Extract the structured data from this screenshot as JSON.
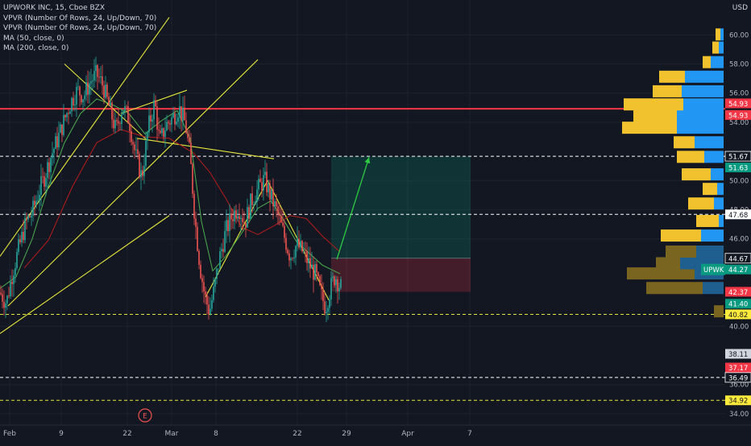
{
  "legend": {
    "title": "UPWORK INC, 15, Cboe BZX",
    "lines": [
      "VPVR (Number Of Rows, 24, Up/Down, 70)",
      "VPVR (Number Of Rows, 24, Up/Down, 70)",
      "MA (50, close, 0)",
      "MA (200, close, 0)"
    ]
  },
  "currency": "USD",
  "event_marker": "E",
  "colors": {
    "background": "#131722",
    "candle_up": "#26a69a",
    "candle_down": "#ef5350",
    "ma50": "#4caf50",
    "ma200": "#b71c1c",
    "trendline": "#e5e83a",
    "resistance": "#f23645",
    "target_arrow": "#2ecc40",
    "vol_up": "#2196f3",
    "vol_down": "#f2c12e"
  },
  "chart_data": {
    "type": "candlestick",
    "title": "UPWORK INC, 15, Cboe BZX",
    "symbol": "UPWK",
    "interval": "15",
    "ylim": [
      33.4,
      61.2
    ],
    "y_ticks": [
      34.0,
      36.0,
      40.0,
      46.0,
      48.0,
      50.0,
      54.0,
      56.0,
      58.0,
      60.0
    ],
    "x_tick_labels": [
      "Feb",
      "9",
      "22",
      "Mar",
      "8",
      "22",
      "29",
      "Apr",
      "7"
    ],
    "price_series": [
      [
        0,
        42.3
      ],
      [
        8,
        41.6
      ],
      [
        16,
        43.8
      ],
      [
        24,
        45.5
      ],
      [
        32,
        47.1
      ],
      [
        40,
        47.8
      ],
      [
        48,
        49.2
      ],
      [
        56,
        50.4
      ],
      [
        64,
        51.8
      ],
      [
        72,
        52.9
      ],
      [
        80,
        54.2
      ],
      [
        88,
        55.4
      ],
      [
        96,
        56.2
      ],
      [
        104,
        55.8
      ],
      [
        112,
        56.8
      ],
      [
        120,
        57.3
      ],
      [
        128,
        56.5
      ],
      [
        136,
        54.9
      ],
      [
        144,
        53.4
      ],
      [
        152,
        55.1
      ],
      [
        160,
        54.2
      ],
      [
        168,
        51.8
      ],
      [
        176,
        50.2
      ],
      [
        184,
        53.6
      ],
      [
        192,
        55.4
      ],
      [
        198,
        52.6
      ],
      [
        206,
        53.8
      ],
      [
        214,
        54.3
      ],
      [
        222,
        55.0
      ],
      [
        230,
        53.9
      ],
      [
        236,
        51.6
      ],
      [
        242,
        47.3
      ],
      [
        248,
        44.2
      ],
      [
        254,
        42.1
      ],
      [
        260,
        41.0
      ],
      [
        266,
        42.6
      ],
      [
        272,
        44.6
      ],
      [
        280,
        46.5
      ],
      [
        288,
        47.6
      ],
      [
        296,
        48.2
      ],
      [
        304,
        47.1
      ],
      [
        312,
        48.6
      ],
      [
        320,
        49.4
      ],
      [
        328,
        50.1
      ],
      [
        336,
        48.9
      ],
      [
        344,
        47.8
      ],
      [
        352,
        46.3
      ],
      [
        360,
        44.8
      ],
      [
        368,
        45.6
      ],
      [
        376,
        45.1
      ],
      [
        384,
        44.2
      ],
      [
        392,
        43.5
      ],
      [
        398,
        42.2
      ],
      [
        404,
        41.3
      ],
      [
        410,
        42.6
      ],
      [
        416,
        43.5
      ],
      [
        422,
        42.7
      ]
    ],
    "ma50": [
      [
        0,
        42.6
      ],
      [
        20,
        43.4
      ],
      [
        40,
        46.0
      ],
      [
        60,
        49.6
      ],
      [
        80,
        52.6
      ],
      [
        100,
        54.6
      ],
      [
        120,
        55.6
      ],
      [
        140,
        55.2
      ],
      [
        160,
        54.6
      ],
      [
        180,
        53.2
      ],
      [
        200,
        54.1
      ],
      [
        220,
        54.8
      ],
      [
        236,
        52.9
      ],
      [
        250,
        47.2
      ],
      [
        264,
        43.8
      ],
      [
        280,
        44.8
      ],
      [
        300,
        46.4
      ],
      [
        320,
        48.1
      ],
      [
        336,
        48.6
      ],
      [
        352,
        47.3
      ],
      [
        368,
        45.8
      ],
      [
        384,
        45.0
      ],
      [
        400,
        44.2
      ],
      [
        422,
        43.6
      ]
    ],
    "ma200": [
      [
        30,
        44.0
      ],
      [
        60,
        45.9
      ],
      [
        90,
        49.6
      ],
      [
        120,
        52.6
      ],
      [
        150,
        53.5
      ],
      [
        180,
        53.0
      ],
      [
        210,
        52.9
      ],
      [
        240,
        51.9
      ],
      [
        260,
        50.6
      ],
      [
        280,
        48.8
      ],
      [
        300,
        46.8
      ],
      [
        320,
        46.3
      ],
      [
        340,
        46.9
      ],
      [
        360,
        47.6
      ],
      [
        380,
        47.4
      ],
      [
        400,
        46.2
      ],
      [
        422,
        45.1
      ]
    ],
    "horizontal_levels": [
      {
        "price": 54.93,
        "style": "solid",
        "color": "#f23645"
      },
      {
        "price": 51.67,
        "style": "dashed",
        "color": "#ffffff"
      },
      {
        "price": 47.68,
        "style": "dashed",
        "color": "#ffffff"
      },
      {
        "price": 40.82,
        "style": "dashed",
        "color": "#e5e83a"
      },
      {
        "price": 36.49,
        "style": "dashed",
        "color": "#ffffff"
      },
      {
        "price": 34.92,
        "style": "dashed",
        "color": "#e5e83a"
      }
    ],
    "trend_lines": [
      {
        "from": [
          0,
          44.8
        ],
        "to": [
          210,
          61.2
        ]
      },
      {
        "from": [
          10,
          41.4
        ],
        "to": [
          320,
          58.3
        ]
      },
      {
        "from": [
          0,
          39.5
        ],
        "to": [
          210,
          47.6
        ]
      },
      {
        "from": [
          170,
          52.9
        ],
        "to": [
          340,
          51.5
        ]
      },
      {
        "from": [
          80,
          58.0
        ],
        "to": [
          182,
          52.8
        ]
      },
      {
        "from": [
          150,
          54.6
        ],
        "to": [
          232,
          56.2
        ]
      },
      {
        "from": [
          255,
          42.0
        ],
        "to": [
          332,
          50.0
        ]
      },
      {
        "from": [
          332,
          50.0
        ],
        "to": [
          408,
          41.8
        ]
      }
    ],
    "position": {
      "entry": 44.67,
      "target": 51.67,
      "stop": 42.37
    },
    "target_arrow": {
      "from": [
        418,
        44.6
      ],
      "to": [
        458,
        51.6
      ]
    },
    "volume_profile": [
      {
        "price": 41.0,
        "up": 0,
        "down": 12,
        "muted": true
      },
      {
        "price": 42.6,
        "up": 26,
        "down": 70,
        "muted": true
      },
      {
        "price": 43.6,
        "up": 36,
        "down": 84,
        "muted": true
      },
      {
        "price": 44.3,
        "up": 54,
        "down": 30,
        "muted": true
      },
      {
        "price": 45.1,
        "up": 34,
        "down": 38,
        "muted": true
      },
      {
        "price": 46.2,
        "up": 28,
        "down": 50
      },
      {
        "price": 47.2,
        "up": 6,
        "down": 28
      },
      {
        "price": 48.4,
        "up": 12,
        "down": 32
      },
      {
        "price": 49.4,
        "up": 8,
        "down": 18
      },
      {
        "price": 50.4,
        "up": 16,
        "down": 36
      },
      {
        "price": 51.6,
        "up": 24,
        "down": 34
      },
      {
        "price": 52.6,
        "up": 36,
        "down": 26
      },
      {
        "price": 53.6,
        "up": 58,
        "down": 68
      },
      {
        "price": 54.4,
        "up": 58,
        "down": 54
      },
      {
        "price": 55.2,
        "up": 50,
        "down": 74
      },
      {
        "price": 56.1,
        "up": 52,
        "down": 36
      },
      {
        "price": 57.1,
        "up": 48,
        "down": 32
      },
      {
        "price": 58.1,
        "up": 16,
        "down": 10
      },
      {
        "price": 59.1,
        "up": 6,
        "down": 8
      },
      {
        "price": 60.0,
        "up": 4,
        "down": 6
      }
    ],
    "price_labels": [
      {
        "text": "54.93",
        "price": 55.3,
        "bg": "#f23645",
        "fg": "#ffffff"
      },
      {
        "text": "54.93",
        "price": 54.5,
        "bg": "#f23645",
        "fg": "#ffffff"
      },
      {
        "text": "51.67",
        "price": 51.67,
        "bg": "#131722",
        "fg": "#ffffff",
        "border": "#ffffff"
      },
      {
        "text": "51.63",
        "price": 50.9,
        "bg": "#089981",
        "fg": "#ffffff"
      },
      {
        "text": "47.68",
        "price": 47.68,
        "bg": "#ffffff",
        "fg": "#131722"
      },
      {
        "text": "44.67",
        "price": 44.67,
        "bg": "#131722",
        "fg": "#ffffff",
        "border": "#ffffff"
      },
      {
        "text": "44.27",
        "price": 43.9,
        "bg": "#089981",
        "fg": "#ffffff"
      },
      {
        "text": "42.37",
        "price": 42.37,
        "bg": "#f23645",
        "fg": "#ffffff"
      },
      {
        "text": "41.40",
        "price": 41.55,
        "bg": "#089981",
        "fg": "#ffffff"
      },
      {
        "text": "40.82",
        "price": 40.82,
        "bg": "#ffeb3b",
        "fg": "#131722"
      },
      {
        "text": "38.11",
        "price": 38.11,
        "bg": "#d1d4dc",
        "fg": "#131722"
      },
      {
        "text": "37.17",
        "price": 37.17,
        "bg": "#f23645",
        "fg": "#ffffff"
      },
      {
        "text": "36.49",
        "price": 36.49,
        "bg": "#131722",
        "fg": "#ffffff",
        "border": "#ffffff"
      },
      {
        "text": "34.92",
        "price": 34.92,
        "bg": "#ffeb3b",
        "fg": "#131722"
      }
    ],
    "symbol_tag": {
      "text": "UPWK",
      "price": 43.9
    }
  }
}
